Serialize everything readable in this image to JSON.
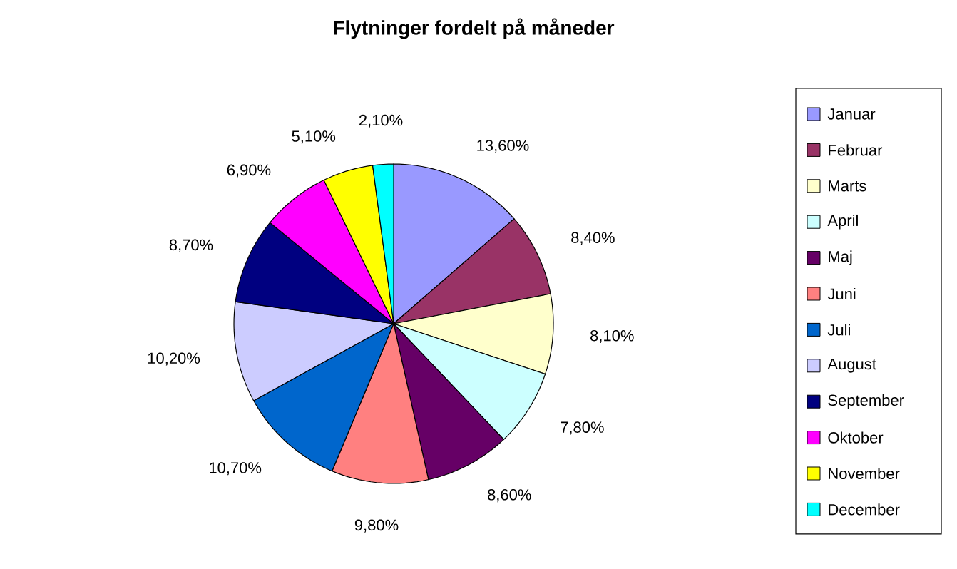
{
  "chart_data": {
    "type": "pie",
    "title": "Flytninger fordelt på måneder",
    "categories": [
      "Januar",
      "Februar",
      "Marts",
      "April",
      "Maj",
      "Juni",
      "Juli",
      "August",
      "September",
      "Oktober",
      "November",
      "December"
    ],
    "values": [
      13.6,
      8.4,
      8.1,
      7.8,
      8.6,
      9.8,
      10.7,
      10.2,
      8.7,
      6.9,
      5.1,
      2.1
    ],
    "value_labels": [
      "13,60%",
      "8,40%",
      "8,10%",
      "7,80%",
      "8,60%",
      "9,80%",
      "10,70%",
      "10,20%",
      "8,70%",
      "6,90%",
      "5,10%",
      "2,10%"
    ],
    "colors": [
      "#9999ff",
      "#993366",
      "#ffffcc",
      "#ccffff",
      "#660066",
      "#ff8080",
      "#0066cc",
      "#ccccff",
      "#000080",
      "#ff00ff",
      "#ffff00",
      "#00ffff"
    ],
    "legend": "right"
  }
}
